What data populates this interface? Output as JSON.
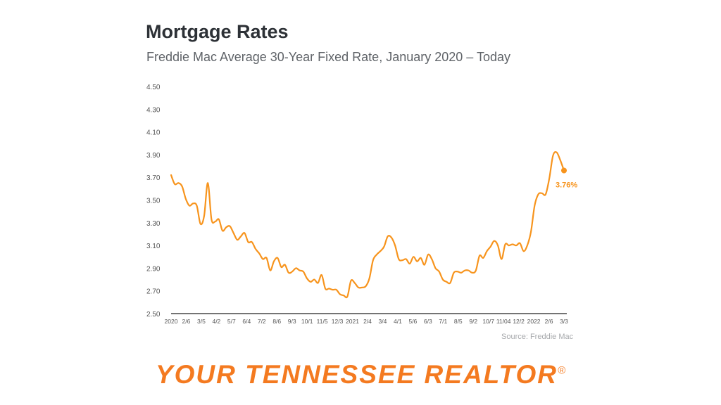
{
  "title": "Mortgage Rates",
  "subtitle": "Freddie Mac Average 30-Year Fixed Rate, January 2020 – Today",
  "source": "Source: Freddie Mac",
  "brand": {
    "name": "YOUR TENNESSEE REALTOR",
    "mark": "®"
  },
  "colors": {
    "line": "#f7941d",
    "axis": "#222222",
    "grid": "#e6e6e6",
    "tick_text": "#555555",
    "brand": "#f47a20"
  },
  "chart_data": {
    "type": "line",
    "title": "Mortgage Rates",
    "subtitle": "Freddie Mac Average 30-Year Fixed Rate, January 2020 – Today",
    "ylim": [
      2.5,
      4.5
    ],
    "y_ticks": [
      "4.50",
      "4.30",
      "4.10",
      "3.90",
      "3.70",
      "3.50",
      "3.30",
      "3.10",
      "2.90",
      "2.70",
      "2.50"
    ],
    "x_ticks": [
      "2020",
      "2/6",
      "3/5",
      "4/2",
      "5/7",
      "6/4",
      "7/2",
      "8/6",
      "9/3",
      "10/1",
      "11/5",
      "12/3",
      "2021",
      "2/4",
      "3/4",
      "4/1",
      "5/6",
      "6/3",
      "7/1",
      "8/5",
      "9/2",
      "10/7",
      "11/04",
      "12/2",
      "2022",
      "2/6",
      "3/3"
    ],
    "grid": false,
    "series": [
      {
        "values": [
          3.72,
          3.64,
          3.65,
          3.62,
          3.51,
          3.45,
          3.47,
          3.45,
          3.29,
          3.36,
          3.65,
          3.33,
          3.31,
          3.33,
          3.23,
          3.26,
          3.27,
          3.21,
          3.15,
          3.18,
          3.21,
          3.13,
          3.13,
          3.07,
          3.03,
          2.98,
          2.99,
          2.88,
          2.96,
          2.99,
          2.91,
          2.93,
          2.86,
          2.87,
          2.9,
          2.88,
          2.87,
          2.81,
          2.78,
          2.8,
          2.77,
          2.84,
          2.72,
          2.72,
          2.71,
          2.71,
          2.67,
          2.66,
          2.65,
          2.79,
          2.77,
          2.73,
          2.73,
          2.74,
          2.81,
          2.97,
          3.02,
          3.05,
          3.09,
          3.18,
          3.17,
          3.1,
          2.98,
          2.97,
          2.98,
          2.94,
          3.0,
          2.96,
          2.99,
          2.93,
          3.02,
          2.98,
          2.9,
          2.87,
          2.8,
          2.78,
          2.77,
          2.86,
          2.87,
          2.86,
          2.88,
          2.88,
          2.86,
          2.88,
          3.01,
          2.99,
          3.05,
          3.09,
          3.14,
          3.1,
          2.98,
          3.11,
          3.1,
          3.11,
          3.1,
          3.12,
          3.05,
          3.1,
          3.22,
          3.45,
          3.55,
          3.56,
          3.55,
          3.69,
          3.89,
          3.92,
          3.85,
          3.76
        ]
      }
    ],
    "last_label": "3.76%"
  }
}
